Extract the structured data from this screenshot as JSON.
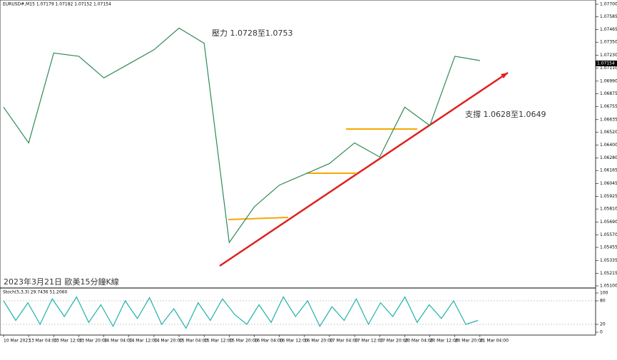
{
  "chart_data": [
    {
      "type": "line",
      "title": "EURUSD#,M15 1.07179 1.07182 1.07152 1.07154",
      "annotations": [
        "壓力 1.0728至1.0753",
        "支撐 1.0628至1.0649",
        "2023年3月21日 歐美15分鐘K線"
      ],
      "categories": [
        "10 Mar 2023",
        "13 Mar 04:00",
        "13 Mar 12:00",
        "13 Mar 20:00",
        "14 Mar 04:00",
        "14 Mar 12:00",
        "14 Mar 20:00",
        "15 Mar 04:00",
        "15 Mar 12:00",
        "15 Mar 20:00",
        "16 Mar 04:00",
        "16 Mar 12:00",
        "16 Mar 20:00",
        "17 Mar 04:00",
        "17 Mar 12:00",
        "17 Mar 20:00",
        "20 Mar 04:00",
        "20 Mar 12:00",
        "20 Mar 20:00",
        "21 Mar 04:00"
      ],
      "series": [
        {
          "name": "EURUSD#",
          "color": "#2e8b57",
          "values": [
            1.0675,
            1.0642,
            1.0725,
            1.0722,
            1.0702,
            1.0715,
            1.0728,
            1.0748,
            1.0734,
            1.055,
            1.0583,
            1.0603,
            1.0613,
            1.0623,
            1.0642,
            1.0629,
            1.0675,
            1.0658,
            1.0722,
            1.0718
          ]
        }
      ],
      "last_price": {
        "value": 1.07154,
        "label": "1.07154"
      },
      "ylim": [
        1.051,
        1.077
      ],
      "yticks": [
        {
          "value": 1.077,
          "label": "1.07700"
        },
        {
          "value": 1.07585,
          "label": "1.07585"
        },
        {
          "value": 1.07465,
          "label": "1.07465"
        },
        {
          "value": 1.0735,
          "label": "1.07350"
        },
        {
          "value": 1.0723,
          "label": "1.07230"
        },
        {
          "value": 1.0711,
          "label": "1.07110"
        },
        {
          "value": 1.0699,
          "label": "1.06990"
        },
        {
          "value": 1.06875,
          "label": "1.06875"
        },
        {
          "value": 1.06755,
          "label": "1.06755"
        },
        {
          "value": 1.06635,
          "label": "1.06635"
        },
        {
          "value": 1.0652,
          "label": "1.06520"
        },
        {
          "value": 1.064,
          "label": "1.06400"
        },
        {
          "value": 1.0628,
          "label": "1.06280"
        },
        {
          "value": 1.06165,
          "label": "1.06165"
        },
        {
          "value": 1.06045,
          "label": "1.06045"
        },
        {
          "value": 1.05925,
          "label": "1.05925"
        },
        {
          "value": 1.0581,
          "label": "1.05810"
        },
        {
          "value": 1.0569,
          "label": "1.05690"
        },
        {
          "value": 1.0557,
          "label": "1.05570"
        },
        {
          "value": 1.05455,
          "label": "1.05455"
        },
        {
          "value": 1.05335,
          "label": "1.05335"
        },
        {
          "value": 1.05215,
          "label": "1.05215"
        },
        {
          "value": 1.051,
          "label": "1.05100"
        }
      ]
    },
    {
      "type": "line",
      "title": "Stoch(5,3,3) 29.7436 51.2060",
      "series": [
        {
          "name": "Stoch",
          "color": "#20b2aa",
          "values": [
            80,
            30,
            75,
            20,
            85,
            40,
            90,
            25,
            70,
            15,
            80,
            35,
            88,
            20,
            60,
            10,
            75,
            30,
            85,
            45,
            20,
            70,
            25,
            90,
            40,
            80,
            15,
            65,
            30,
            85,
            20,
            75,
            40,
            90,
            25,
            70,
            35,
            80,
            20,
            30
          ]
        }
      ],
      "ylim": [
        0,
        100
      ],
      "yticks": [
        100,
        80,
        20,
        0
      ]
    }
  ]
}
